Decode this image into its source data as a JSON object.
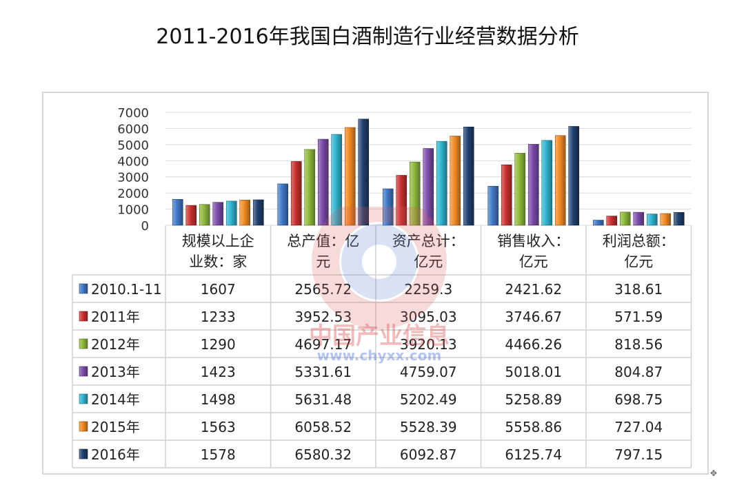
{
  "title": "2011-2016年我国白酒制造行业经营数据分析",
  "watermark": {
    "text": "中国产业信息",
    "url": "www.chyxx.com"
  },
  "chart_data": {
    "type": "bar",
    "title": "2011-2016年我国白酒制造行业经营数据分析",
    "categories": [
      [
        "规模以上企",
        "业数：家"
      ],
      [
        "总产值：亿",
        "元"
      ],
      [
        "资产总计：",
        "亿元"
      ],
      [
        "销售收入：",
        "亿元"
      ],
      [
        "利润总额：",
        "亿元"
      ]
    ],
    "series": [
      {
        "name": "2010.1-11",
        "color": "#3f78c5",
        "values": [
          1607,
          2565.72,
          2259.3,
          2421.62,
          318.61
        ]
      },
      {
        "name": "2011年",
        "color": "#c8302e",
        "values": [
          1233,
          3952.53,
          3095.03,
          3746.67,
          571.59
        ]
      },
      {
        "name": "2012年",
        "color": "#8db83a",
        "values": [
          1290,
          4697.17,
          3920.13,
          4466.26,
          818.56
        ]
      },
      {
        "name": "2013年",
        "color": "#7a4aa8",
        "values": [
          1423,
          5331.61,
          4759.07,
          5018.01,
          804.87
        ]
      },
      {
        "name": "2014年",
        "color": "#2fb3cf",
        "values": [
          1498,
          5631.48,
          5202.49,
          5258.89,
          698.75
        ]
      },
      {
        "name": "2015年",
        "color": "#f08a22",
        "values": [
          1563,
          6058.52,
          5528.39,
          5558.86,
          727.04
        ]
      },
      {
        "name": "2016年",
        "color": "#1f3f6e",
        "values": [
          1578,
          6580.32,
          6092.87,
          6125.74,
          797.15
        ]
      }
    ],
    "table_values": [
      [
        "1607",
        "2565.72",
        "2259.3",
        "2421.62",
        "318.61"
      ],
      [
        "1233",
        "3952.53",
        "3095.03",
        "3746.67",
        "571.59"
      ],
      [
        "1290",
        "4697.17",
        "3920.13",
        "4466.26",
        "818.56"
      ],
      [
        "1423",
        "5331.61",
        "4759.07",
        "5018.01",
        "804.87"
      ],
      [
        "1498",
        "5631.48",
        "5202.49",
        "5258.89",
        "698.75"
      ],
      [
        "1563",
        "6058.52",
        "5528.39",
        "5558.86",
        "727.04"
      ],
      [
        "1578",
        "6580.32",
        "6092.87",
        "6125.74",
        "797.15"
      ]
    ],
    "yticks": [
      "0",
      "1000",
      "2000",
      "3000",
      "4000",
      "5000",
      "6000",
      "7000"
    ],
    "ylim": [
      0,
      7000
    ],
    "xlabel": "",
    "ylabel": "",
    "grid": true,
    "legend": "data-table"
  }
}
